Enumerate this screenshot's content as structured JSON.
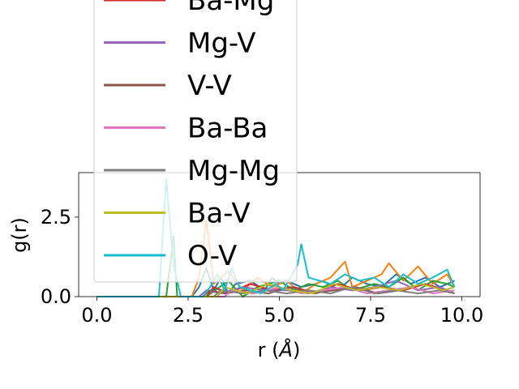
{
  "chart_data": {
    "type": "line",
    "title": "",
    "xlabel": "r (Å)",
    "xlabel_parts": {
      "prefix": "r (",
      "symbol": "Å",
      "suffix": ")"
    },
    "ylabel": "g(r)",
    "xlim": [
      -0.5,
      10.5
    ],
    "ylim": [
      0,
      3.9
    ],
    "xticks": [
      0.0,
      2.5,
      5.0,
      7.5,
      10.0
    ],
    "xtick_labels": [
      "0.0",
      "2.5",
      "5.0",
      "7.5",
      "10.0"
    ],
    "yticks": [
      0.0,
      2.5
    ],
    "ytick_labels": [
      "0.0",
      "2.5"
    ],
    "grid": false,
    "legend_position": "upper-left",
    "legend_visible_entries": [
      "Ba-Mg",
      "Mg-V",
      "V-V",
      "Ba-Ba",
      "Mg-Mg",
      "Ba-V",
      "O-V"
    ],
    "series": [
      {
        "name": "",
        "color": "#1f77b4",
        "x": [
          0,
          1.8,
          2.0,
          2.6,
          2.8,
          3.0,
          3.2,
          3.4,
          3.6,
          3.8,
          4.2,
          4.6,
          4.8,
          5.0,
          5.2,
          5.6,
          6.0,
          6.2,
          6.6,
          7.0,
          7.4,
          7.8,
          8.2,
          8.6,
          9.0,
          9.4,
          9.8
        ],
        "values": [
          0,
          0,
          0,
          0,
          0.3,
          0.9,
          0.2,
          0.6,
          0.1,
          0.4,
          0.5,
          0.2,
          0.6,
          0.4,
          0.5,
          0.3,
          0.4,
          0.5,
          0.2,
          0.6,
          0.4,
          0.3,
          0.7,
          0.4,
          0.6,
          0.3,
          0.5
        ]
      },
      {
        "name": "",
        "color": "#ff7f0e",
        "x": [
          0,
          2.6,
          2.8,
          3.0,
          3.2,
          3.6,
          4.0,
          4.4,
          4.8,
          5.2,
          5.6,
          6.0,
          6.4,
          6.8,
          7.0,
          7.4,
          7.8,
          8.0,
          8.4,
          8.8,
          9.2,
          9.6,
          9.8
        ],
        "values": [
          0,
          0,
          0.6,
          2.4,
          0.4,
          0.8,
          0.2,
          0.6,
          0.3,
          0.5,
          0.1,
          0.4,
          0.6,
          1.1,
          0.3,
          0.5,
          0.7,
          1.05,
          0.5,
          0.95,
          0.4,
          0.7,
          0.3
        ]
      },
      {
        "name": "",
        "color": "#2ca02c",
        "x": [
          0,
          1.9,
          2.1,
          2.2,
          3.0,
          3.6,
          4.0,
          4.4,
          5.0,
          5.4,
          5.8,
          6.2,
          6.6,
          7.0,
          7.6,
          8.0,
          8.4,
          8.8,
          9.2,
          9.6,
          9.8
        ],
        "values": [
          0,
          0,
          1.9,
          0,
          0,
          0.5,
          0,
          0.3,
          0.5,
          0.2,
          0.4,
          0.3,
          0.5,
          0.2,
          0.4,
          0.3,
          0.6,
          0.2,
          0.5,
          0.4,
          0.3
        ]
      },
      {
        "name": "Ba-Mg",
        "color": "#d62728",
        "x": [
          0,
          3.0,
          3.2,
          3.6,
          4.2,
          4.8,
          5.4,
          6.0,
          6.6,
          7.2,
          7.8,
          8.4,
          9.0,
          9.6,
          9.8
        ],
        "values": [
          0,
          0,
          0.3,
          0.1,
          0.4,
          0.2,
          0.3,
          0.1,
          0.4,
          0.2,
          0.3,
          0.2,
          0.4,
          0.2,
          0.1
        ]
      },
      {
        "name": "Mg-V",
        "color": "#9467bd",
        "x": [
          0,
          2.8,
          3.0,
          3.4,
          4.0,
          4.6,
          5.2,
          5.8,
          6.4,
          7.0,
          7.6,
          8.2,
          8.8,
          9.4,
          9.8
        ],
        "values": [
          0,
          0,
          0.2,
          0.1,
          0.3,
          0.2,
          0.2,
          0.1,
          0.3,
          0.2,
          0.3,
          0.5,
          0.2,
          0.3,
          0.1
        ]
      },
      {
        "name": "V-V",
        "color": "#8c564b",
        "x": [
          0,
          2.9,
          3.1,
          3.5,
          4.1,
          4.7,
          5.3,
          5.9,
          6.5,
          7.1,
          7.7,
          8.3,
          8.9,
          9.5,
          9.8
        ],
        "values": [
          0,
          0,
          0.2,
          0.1,
          0.2,
          0.1,
          0.3,
          0.1,
          0.2,
          0.3,
          0.1,
          0.2,
          0.4,
          0.2,
          0.1
        ]
      },
      {
        "name": "Ba-Ba",
        "color": "#e377c2",
        "x": [
          0,
          3.5,
          3.7,
          4.3,
          5.0,
          5.6,
          6.2,
          6.8,
          7.4,
          8.0,
          8.6,
          9.2,
          9.8
        ],
        "values": [
          0,
          0,
          0.2,
          0.1,
          0.3,
          0.1,
          0.2,
          0.3,
          0.1,
          0.2,
          0.3,
          0.1,
          0.2
        ]
      },
      {
        "name": "Mg-Mg",
        "color": "#7f7f7f",
        "x": [
          0,
          3.2,
          3.4,
          4.0,
          4.6,
          5.2,
          5.8,
          6.4,
          7.0,
          7.6,
          8.2,
          8.8,
          9.4,
          9.8
        ],
        "values": [
          0,
          0,
          0.2,
          0.1,
          0.2,
          0.1,
          0.2,
          0.1,
          0.3,
          0.1,
          0.2,
          0.1,
          0.2,
          0.1
        ]
      },
      {
        "name": "Ba-V",
        "color": "#bcbd22",
        "x": [
          0,
          3.3,
          3.5,
          4.1,
          4.7,
          5.3,
          5.9,
          6.5,
          7.1,
          7.7,
          8.3,
          8.9,
          9.5,
          9.8
        ],
        "values": [
          0,
          0,
          0.3,
          0.1,
          0.4,
          0.2,
          0.1,
          0.4,
          0.2,
          0.3,
          0.2,
          0.4,
          0.2,
          0.3
        ]
      },
      {
        "name": "O-V",
        "color": "#17becf",
        "x": [
          0,
          1.7,
          1.9,
          2.1,
          2.3,
          2.9,
          3.1,
          3.3,
          3.5,
          3.7,
          3.9,
          4.5,
          4.9,
          5.1,
          5.3,
          5.5,
          5.6,
          5.8,
          6.4,
          6.8,
          7.2,
          7.6,
          8.0,
          8.4,
          8.8,
          9.2,
          9.6,
          9.8
        ],
        "values": [
          0,
          0,
          3.7,
          1.0,
          0,
          0,
          0.3,
          0.7,
          0.2,
          0.9,
          0.3,
          0.1,
          0.4,
          0.2,
          0.6,
          1.0,
          1.65,
          0.6,
          0.4,
          0.7,
          0.5,
          0.6,
          0.3,
          0.7,
          0.4,
          0.6,
          0.85,
          0.3
        ]
      }
    ]
  }
}
